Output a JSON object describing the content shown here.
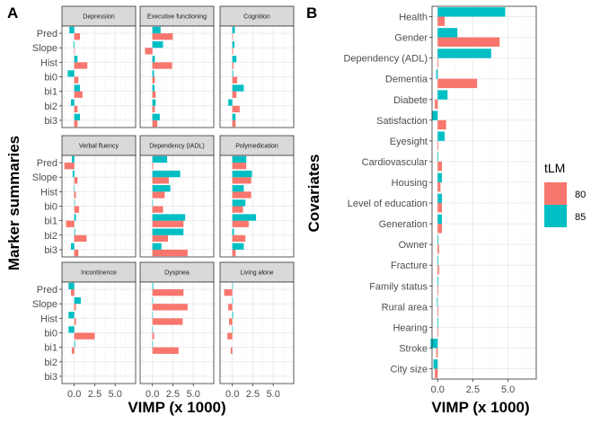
{
  "colors": {
    "tLM80": "#F8766D",
    "tLM85": "#00BFC4"
  },
  "chart_data": [
    {
      "id": "A",
      "type": "bar",
      "orientation": "horizontal",
      "panel_label": "A",
      "ylabel": "Marker summaries",
      "xlabel": "VIMP (x 1000)",
      "xlim": [
        -1.5,
        7.5
      ],
      "xticks": [
        0.0,
        2.5,
        5.0
      ],
      "xtick_labels": [
        "0.0",
        "2.5",
        "5.0"
      ],
      "categories": [
        "Pred",
        "Slope",
        "Hist",
        "bi0",
        "bi1",
        "bi2",
        "bi3"
      ],
      "facets": [
        {
          "title": "Depression",
          "series": [
            {
              "name": "80",
              "values": [
                0.7,
                0.05,
                1.6,
                0.5,
                1.0,
                0.4,
                0.4
              ]
            },
            {
              "name": "85",
              "values": [
                -0.6,
                -0.1,
                0.4,
                -0.8,
                0.7,
                -0.4,
                0.7
              ]
            }
          ]
        },
        {
          "title": "Executive functioning",
          "series": [
            {
              "name": "80",
              "values": [
                2.5,
                -0.9,
                2.4,
                0.3,
                0.4,
                0.3,
                0.6
              ]
            },
            {
              "name": "85",
              "values": [
                1.0,
                1.3,
                0.3,
                0.2,
                0.25,
                0.4,
                0.9
              ]
            }
          ]
        },
        {
          "title": "Cognition",
          "series": [
            {
              "name": "80",
              "values": [
                0.05,
                0.1,
                0.15,
                0.6,
                0.5,
                0.9,
                0.4
              ]
            },
            {
              "name": "85",
              "values": [
                0.3,
                0.25,
                0.5,
                0.1,
                1.4,
                -0.5,
                0.4
              ]
            }
          ]
        },
        {
          "title": "Verbal fluency",
          "series": [
            {
              "name": "80",
              "values": [
                -1.2,
                0.4,
                0.2,
                0.6,
                -1.0,
                1.5,
                0.5
              ]
            },
            {
              "name": "85",
              "values": [
                -0.3,
                -0.2,
                -0.05,
                0.05,
                0.2,
                0.1,
                -0.4
              ]
            }
          ]
        },
        {
          "title": "Dependency (IADL)",
          "series": [
            {
              "name": "80",
              "values": [
                0.1,
                2.0,
                1.5,
                1.3,
                3.8,
                1.9,
                4.3
              ]
            },
            {
              "name": "85",
              "values": [
                1.8,
                3.4,
                2.2,
                0.05,
                4.0,
                3.8,
                1.1
              ]
            }
          ]
        },
        {
          "title": "Polymedication",
          "series": [
            {
              "name": "80",
              "values": [
                1.7,
                2.3,
                2.3,
                1.3,
                2.0,
                1.6,
                0.4
              ]
            },
            {
              "name": "85",
              "values": [
                1.7,
                2.4,
                1.4,
                1.6,
                2.9,
                0.2,
                1.4
              ]
            }
          ]
        },
        {
          "title": "Incontinence",
          "series": [
            {
              "name": "80",
              "values": [
                -0.4,
                0.2,
                0.2,
                2.5,
                -0.3,
                0.0,
                0.0
              ]
            },
            {
              "name": "85",
              "values": [
                -0.7,
                0.8,
                -0.7,
                -0.7,
                0.1,
                0.0,
                0.0
              ]
            }
          ]
        },
        {
          "title": "Dyspnea",
          "series": [
            {
              "name": "80",
              "values": [
                3.8,
                4.3,
                3.7,
                0.2,
                3.2,
                0.0,
                0.0
              ]
            },
            {
              "name": "85",
              "values": [
                0.1,
                0.05,
                0.05,
                0.05,
                0.02,
                0.0,
                0.0
              ]
            }
          ]
        },
        {
          "title": "Living alone",
          "series": [
            {
              "name": "80",
              "values": [
                -1.0,
                -0.5,
                -0.4,
                -0.6,
                -0.2,
                0.0,
                0.0
              ]
            },
            {
              "name": "85",
              "values": [
                0.05,
                0.05,
                0.1,
                0.05,
                0.0,
                0.0,
                0.0
              ]
            }
          ]
        }
      ]
    },
    {
      "id": "B",
      "type": "bar",
      "orientation": "horizontal",
      "panel_label": "B",
      "ylabel": "Covariates",
      "xlabel": "VIMP (x 1000)",
      "xlim": [
        -0.4,
        7.0
      ],
      "xticks": [
        0.0,
        2.5,
        5.0
      ],
      "xtick_labels": [
        "0.0",
        "2.5",
        "5.0"
      ],
      "categories": [
        "Health",
        "Gender",
        "Dependency (ADL)",
        "Dementia",
        "Diabete",
        "Satisfaction",
        "Eyesight",
        "Cardiovascular",
        "Housing",
        "Level of education",
        "Generation",
        "Owner",
        "Fracture",
        "Family status",
        "Rural area",
        "Hearing",
        "Stroke",
        "City size"
      ],
      "series": [
        {
          "name": "80",
          "values": [
            0.5,
            4.4,
            0.05,
            2.8,
            -0.2,
            0.6,
            0.05,
            0.3,
            0.2,
            0.3,
            0.3,
            0.1,
            0.1,
            0.05,
            0.05,
            0.05,
            -0.1,
            -0.2
          ]
        },
        {
          "name": "85",
          "values": [
            4.8,
            1.4,
            3.8,
            -0.1,
            0.7,
            -0.4,
            0.5,
            0.05,
            0.3,
            0.3,
            0.3,
            0.05,
            0.05,
            0.05,
            -0.05,
            0.05,
            -0.5,
            -0.3
          ]
        }
      ],
      "legend": {
        "title": "tLM",
        "position": "right",
        "items": [
          "80",
          "85"
        ]
      }
    }
  ]
}
